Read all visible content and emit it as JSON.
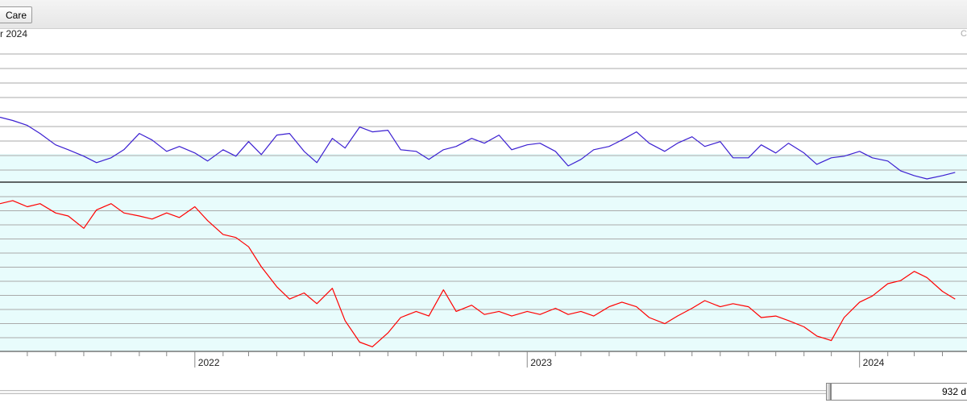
{
  "toolbar": {
    "tab_label": "Care"
  },
  "header": {
    "date_label": "r 2024",
    "corner_label": "C"
  },
  "range_readout": "932 d",
  "colors": {
    "upper_line": "#3b1fd1",
    "lower_line": "#ff0000",
    "panel_fill": "#e8fcfc",
    "grid": "#aaaaaa"
  },
  "chart_data": [
    {
      "type": "line",
      "panel": "upper",
      "x": [
        "2021-06-01",
        "2021-06-15",
        "2021-07-01",
        "2021-07-15",
        "2021-08-01",
        "2021-08-15",
        "2021-09-01",
        "2021-09-15",
        "2021-10-01",
        "2021-10-15",
        "2021-11-01",
        "2021-11-15",
        "2021-12-01",
        "2021-12-15",
        "2022-01-01",
        "2022-01-15",
        "2022-02-01",
        "2022-02-15",
        "2022-03-01",
        "2022-03-15",
        "2022-04-01",
        "2022-04-15",
        "2022-05-01",
        "2022-05-15",
        "2022-06-01",
        "2022-06-15",
        "2022-07-01",
        "2022-07-15",
        "2022-08-01",
        "2022-08-15",
        "2022-09-01",
        "2022-09-15",
        "2022-10-01",
        "2022-10-15",
        "2022-11-01",
        "2022-11-15",
        "2022-12-01",
        "2022-12-15",
        "2023-01-01",
        "2023-01-15",
        "2023-02-01",
        "2023-02-15",
        "2023-03-01",
        "2023-03-15",
        "2023-04-01",
        "2023-04-15",
        "2023-05-01",
        "2023-05-15",
        "2023-06-01",
        "2023-06-15",
        "2023-07-01",
        "2023-07-15",
        "2023-08-01",
        "2023-08-15",
        "2023-09-01",
        "2023-09-15",
        "2023-10-01",
        "2023-10-15",
        "2023-11-01",
        "2023-11-15",
        "2023-12-01",
        "2023-12-15",
        "2024-01-01",
        "2024-01-15",
        "2024-02-01",
        "2024-02-15",
        "2024-03-01",
        "2024-03-15",
        "2024-04-01",
        "2024-04-15"
      ],
      "y": [
        4.0,
        3.8,
        3.5,
        3.0,
        2.3,
        2.0,
        1.6,
        1.2,
        1.5,
        2.0,
        3.0,
        2.6,
        1.9,
        2.2,
        1.8,
        1.3,
        2.0,
        1.6,
        2.5,
        1.7,
        2.9,
        3.0,
        1.9,
        1.2,
        2.7,
        2.1,
        3.4,
        3.1,
        3.2,
        2.0,
        1.9,
        1.4,
        2.0,
        2.2,
        2.7,
        2.4,
        2.9,
        2.0,
        2.3,
        2.4,
        1.9,
        1.0,
        1.4,
        2.0,
        2.2,
        2.6,
        3.1,
        2.4,
        1.9,
        2.4,
        2.8,
        2.2,
        2.5,
        1.5,
        1.5,
        2.3,
        1.8,
        2.4,
        1.8,
        1.1,
        1.5,
        1.6,
        1.9,
        1.5,
        1.3,
        0.7,
        0.4,
        0.2,
        0.4,
        0.6
      ],
      "title": "",
      "xlabel": "",
      "ylabel": "",
      "ylim": [
        0,
        8
      ],
      "grid": true
    },
    {
      "type": "line",
      "panel": "lower",
      "x": [
        "2021-06-01",
        "2021-06-15",
        "2021-07-01",
        "2021-07-15",
        "2021-08-01",
        "2021-08-15",
        "2021-09-01",
        "2021-09-15",
        "2021-10-01",
        "2021-10-15",
        "2021-11-01",
        "2021-11-15",
        "2021-12-01",
        "2021-12-15",
        "2022-01-01",
        "2022-01-15",
        "2022-02-01",
        "2022-02-15",
        "2022-03-01",
        "2022-03-15",
        "2022-04-01",
        "2022-04-15",
        "2022-05-01",
        "2022-05-15",
        "2022-06-01",
        "2022-06-15",
        "2022-07-01",
        "2022-07-15",
        "2022-08-01",
        "2022-08-15",
        "2022-09-01",
        "2022-09-15",
        "2022-10-01",
        "2022-10-15",
        "2022-11-01",
        "2022-11-15",
        "2022-12-01",
        "2022-12-15",
        "2023-01-01",
        "2023-01-15",
        "2023-02-01",
        "2023-02-15",
        "2023-03-01",
        "2023-03-15",
        "2023-04-01",
        "2023-04-15",
        "2023-05-01",
        "2023-05-15",
        "2023-06-01",
        "2023-06-15",
        "2023-07-01",
        "2023-07-15",
        "2023-08-01",
        "2023-08-15",
        "2023-09-01",
        "2023-09-15",
        "2023-10-01",
        "2023-10-15",
        "2023-11-01",
        "2023-11-15",
        "2023-12-01",
        "2023-12-15",
        "2024-01-01",
        "2024-01-15",
        "2024-02-01",
        "2024-02-15",
        "2024-03-01",
        "2024-03-15",
        "2024-04-01",
        "2024-04-15"
      ],
      "y": [
        9.6,
        9.8,
        9.4,
        9.6,
        9.0,
        8.8,
        8.0,
        9.2,
        9.6,
        9.0,
        8.8,
        8.6,
        9.0,
        8.7,
        9.4,
        8.5,
        7.6,
        7.4,
        6.8,
        5.5,
        4.2,
        3.4,
        3.8,
        3.1,
        4.1,
        2.0,
        0.6,
        0.3,
        1.2,
        2.2,
        2.6,
        2.3,
        4.0,
        2.6,
        3.0,
        2.4,
        2.6,
        2.3,
        2.6,
        2.4,
        2.8,
        2.4,
        2.6,
        2.3,
        2.9,
        3.2,
        2.9,
        2.2,
        1.8,
        2.3,
        2.8,
        3.3,
        2.9,
        3.1,
        2.9,
        2.2,
        2.3,
        2.0,
        1.6,
        1.0,
        0.7,
        2.2,
        3.2,
        3.6,
        4.4,
        4.6,
        5.2,
        4.8,
        3.9,
        3.4
      ],
      "title": "",
      "xlabel": "",
      "ylabel": "",
      "ylim": [
        0,
        11
      ],
      "grid": true
    }
  ],
  "x_axis": {
    "tick_labels": [
      "2022",
      "2023",
      "2024"
    ],
    "xlim": [
      "2021-06-01",
      "2024-04-28"
    ]
  }
}
